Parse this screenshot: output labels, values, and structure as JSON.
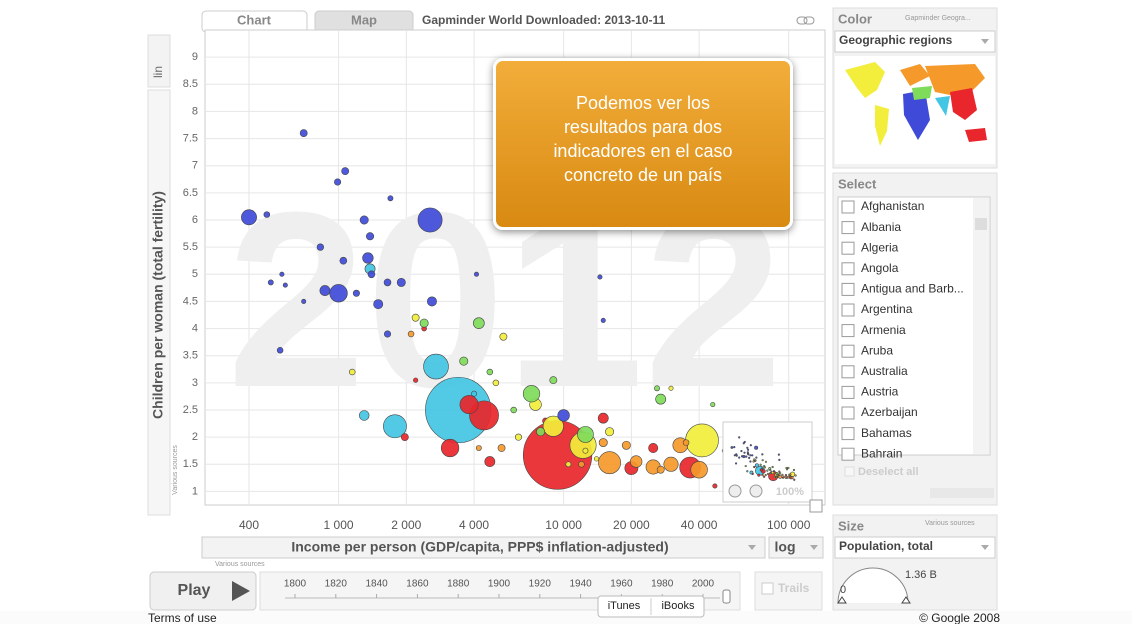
{
  "ui": {
    "tab_chart": "Chart",
    "tab_map": "Map",
    "header": "Gapminder World Downloaded: 2013-10-11",
    "y_scale": "lin",
    "x_scale": "log",
    "various_sources": "Various sources",
    "callout": "Podemos ver los resultados para dos indicadores en el caso concreto de un país",
    "zoom_level": "100%",
    "color_heading": "Color",
    "color_source": "Gapminder Geogra...",
    "color_indicator": "Geographic regions",
    "select_heading": "Select",
    "countries": [
      "Afghanistan",
      "Albania",
      "Algeria",
      "Angola",
      "Antigua and Barb...",
      "Argentina",
      "Armenia",
      "Aruba",
      "Australia",
      "Austria",
      "Azerbaijan",
      "Bahamas",
      "Bahrain"
    ],
    "deselect_all": "Deselect all",
    "size_heading": "Size",
    "size_source": "Various sources",
    "size_indicator": "Population, total",
    "size_max": "1.36 B",
    "size_min": "0",
    "play": "Play",
    "timeline_ticks": [
      1800,
      1820,
      1840,
      1860,
      1880,
      1900,
      1920,
      1940,
      1960,
      1980,
      2000
    ],
    "trails": "Trails",
    "terms": "Terms of use",
    "copyright": "© Google 2008",
    "tooltip_itunes": "iTunes",
    "tooltip_ibooks": "iBooks"
  },
  "chart_data": {
    "type": "bubble",
    "year": 2012,
    "x_label": "Income per person (GDP/capita, PPP$ inflation-adjusted)",
    "y_label": "Children per woman (total fertility)",
    "xlog": true,
    "xlim": [
      255,
      145000
    ],
    "ylim": [
      0.75,
      9.5
    ],
    "xticks": [
      400,
      {
        "value": 1000,
        "label": "1 000"
      },
      {
        "value": 2000,
        "label": "2 000"
      },
      {
        "value": 4000,
        "label": "4 000"
      },
      {
        "value": 10000,
        "label": "10 000"
      },
      {
        "value": 20000,
        "label": "20 000"
      },
      {
        "value": 40000,
        "label": "40 000"
      },
      {
        "value": 100000,
        "label": "100 000"
      }
    ],
    "yticks": [
      1,
      1.5,
      2,
      2.5,
      3,
      3.5,
      4,
      4.5,
      5,
      5.5,
      6,
      6.5,
      7,
      7.5,
      8,
      8.5,
      9
    ],
    "grid": true,
    "series": [
      {
        "color": "#43c6e3",
        "x": [
          3400,
          2710,
          1780,
          1300,
          1380,
          4000
        ],
        "values": [
          2.5,
          3.3,
          2.2,
          2.4,
          5.1,
          2.8
        ],
        "sizes": [
          1240,
          180,
          155,
          28,
          30,
          8
        ]
      },
      {
        "color": "#e8262b",
        "x": [
          9400,
          4430,
          3800,
          3130,
          36500,
          20000,
          25000,
          15000,
          1970,
          2400,
          8300,
          2200,
          47000,
          4700
        ],
        "values": [
          1.67,
          2.4,
          2.6,
          1.8,
          1.44,
          1.43,
          1.8,
          2.35,
          2.0,
          4.0,
          2.3,
          3.05,
          1.1,
          1.55
        ],
        "sizes": [
          1360,
          245,
          97,
          90,
          127,
          50,
          25,
          30,
          15,
          7,
          10,
          6,
          5,
          30
        ]
      },
      {
        "color": "#f2ee3b",
        "x": [
          41200,
          12200,
          9000,
          7500,
          16000,
          1150,
          2200,
          5400,
          30000,
          5000,
          14000,
          10500,
          12500,
          6300
        ],
        "values": [
          1.94,
          1.85,
          2.2,
          2.6,
          2.1,
          3.2,
          4.2,
          3.85,
          2.9,
          3.0,
          1.6,
          1.5,
          1.75,
          2.0
        ],
        "sizes": [
          315,
          200,
          120,
          40,
          20,
          10,
          15,
          15,
          5,
          10,
          6,
          8,
          8,
          12
        ]
      },
      {
        "color": "#f5992b",
        "x": [
          16000,
          40000,
          33000,
          30000,
          21000,
          25000,
          15000,
          19000,
          2100,
          5300,
          4200,
          35000,
          12000,
          27000,
          52000
        ],
        "values": [
          1.53,
          1.4,
          1.85,
          1.5,
          1.55,
          1.45,
          1.9,
          1.85,
          3.9,
          1.8,
          1.8,
          1.9,
          1.5,
          1.4,
          1.75
        ],
        "sizes": [
          143,
          81,
          65,
          60,
          40,
          60,
          20,
          20,
          10,
          15,
          8,
          10,
          10,
          15,
          8
        ]
      },
      {
        "color": "#7fdb5a",
        "x": [
          7200,
          12500,
          2400,
          4200,
          3600,
          9000,
          27000,
          26000,
          46000,
          7900,
          6000,
          4700
        ],
        "values": [
          2.8,
          2.05,
          4.1,
          4.1,
          3.4,
          3.05,
          2.7,
          2.9,
          2.6,
          2.1,
          2.5,
          3.2
        ],
        "sizes": [
          80,
          75,
          20,
          35,
          20,
          15,
          30,
          8,
          3,
          20,
          10,
          10
        ]
      },
      {
        "color": "#3f4bd8",
        "x": [
          2550,
          400,
          700,
          480,
          1070,
          990,
          1300,
          1380,
          830,
          1350,
          1050,
          1000,
          1200,
          1500,
          1650,
          1900,
          2600,
          1400,
          560,
          580,
          700,
          500,
          1700,
          550,
          1650,
          4100,
          14500,
          15000,
          10000,
          870
        ],
        "values": [
          6.0,
          6.05,
          7.6,
          6.1,
          6.9,
          6.7,
          6.0,
          5.7,
          5.5,
          5.3,
          5.25,
          4.65,
          4.65,
          4.45,
          4.85,
          4.85,
          4.5,
          5.0,
          5.0,
          4.8,
          4.5,
          4.85,
          6.4,
          3.6,
          3.9,
          5.0,
          4.95,
          4.15,
          2.4,
          4.7
        ],
        "sizes": [
          170,
          67,
          15,
          10,
          15,
          12,
          20,
          16,
          13,
          33,
          14,
          90,
          12,
          25,
          14,
          20,
          25,
          14,
          5,
          5,
          5,
          8,
          8,
          10,
          12,
          3,
          2,
          2,
          40,
          30
        ]
      }
    ]
  }
}
